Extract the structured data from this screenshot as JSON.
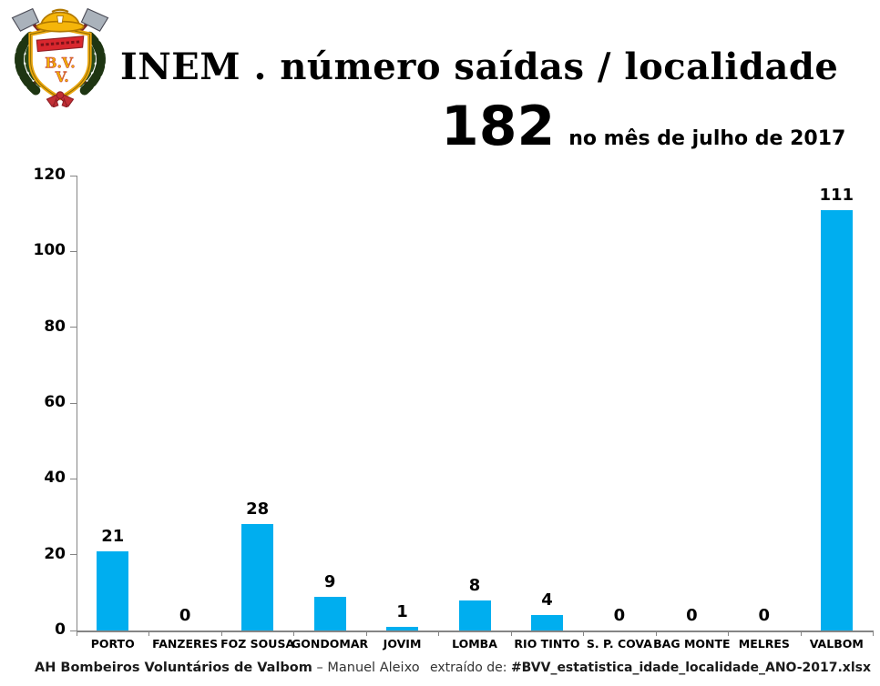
{
  "header": {
    "logo": "bvv-firefighters-crest",
    "title": "INEM . número saídas / localidade",
    "stat_value": "182",
    "stat_caption": "no mês de julho de 2017"
  },
  "chart_data": {
    "type": "bar",
    "title": "INEM . número saídas / localidade",
    "subtitle": "182 no mês de julho de 2017",
    "categories": [
      "PORTO",
      "FANZERES",
      "FOZ SOUSA",
      "GONDOMAR",
      "JOVIM",
      "LOMBA",
      "RIO TINTO",
      "S. P. COVA",
      "BAG MONTE",
      "MELRES",
      "VALBOM"
    ],
    "values": [
      21,
      0,
      28,
      9,
      1,
      8,
      4,
      0,
      0,
      0,
      111
    ],
    "total": 182,
    "xlabel": "",
    "ylabel": "",
    "ylim": [
      0,
      120
    ],
    "ytick_step": 20,
    "grid": false,
    "legend": false,
    "bar_color": "#00AEEF",
    "axis_color": "#858585",
    "label_color": "#000000"
  },
  "footer": {
    "left_bold": "AH Bombeiros Voluntários de Valbom",
    "left_regular": " – Manuel Aleixo",
    "right_label": "extraído de: ",
    "right_file": "#BVV_estatistica_idade_localidade_ANO-2017.xlsx"
  }
}
